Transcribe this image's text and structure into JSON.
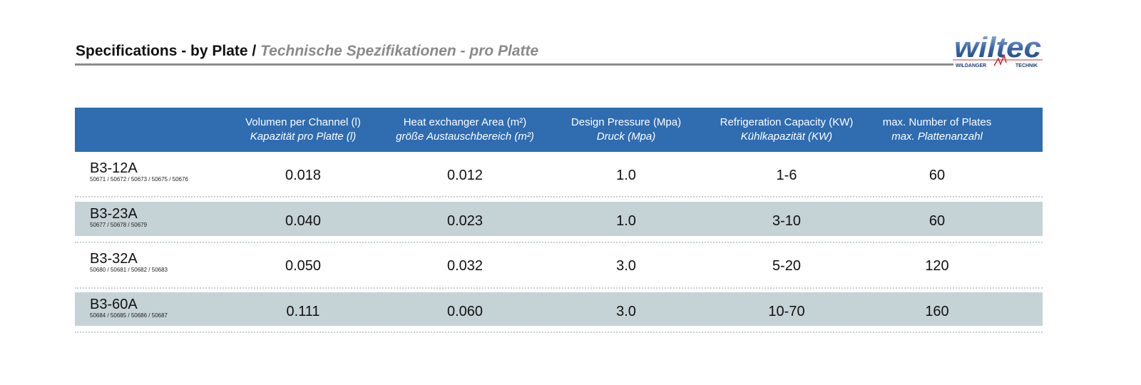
{
  "title": {
    "en": "Specifications - by Plate",
    "separator": " / ",
    "de": "Technische Spezifikationen - pro Platte"
  },
  "logo": {
    "text": "wiltec",
    "subtitle_left": "WILDANGER",
    "subtitle_right": "TECHNIK"
  },
  "colors": {
    "header": "#2f6cb0",
    "alt_row": "#c5d2d6",
    "rule": "#8c8c8c"
  },
  "columns": [
    {
      "en": "Volumen per Channel (l)",
      "de": "Kapazität pro Platte (l)"
    },
    {
      "en": "Heat exchanger Area (m²)",
      "de": "größe Austauschbereich (m²)"
    },
    {
      "en": "Design Pressure (Mpa)",
      "de": "Druck (Mpa)"
    },
    {
      "en": "Refrigeration Capacity (KW)",
      "de": "Kühlkapazität (KW)"
    },
    {
      "en": "max. Number of Plates",
      "de": "max. Plattenanzahl"
    }
  ],
  "rows": [
    {
      "model": "B3-12A",
      "parts": "50671 / 50672 / 50673 / 50675 / 50676",
      "values": [
        "0.018",
        "0.012",
        "1.0",
        "1-6",
        "60"
      ]
    },
    {
      "model": "B3-23A",
      "parts": "50677 / 50678 / 50679",
      "values": [
        "0.040",
        "0.023",
        "1.0",
        "3-10",
        "60"
      ]
    },
    {
      "model": "B3-32A",
      "parts": "50680 / 50681 / 50682 / 50683",
      "values": [
        "0.050",
        "0.032",
        "3.0",
        "5-20",
        "120"
      ]
    },
    {
      "model": "B3-60A",
      "parts": "50684 / 50685 / 50686 / 50687",
      "values": [
        "0.111",
        "0.060",
        "3.0",
        "10-70",
        "160"
      ]
    }
  ]
}
